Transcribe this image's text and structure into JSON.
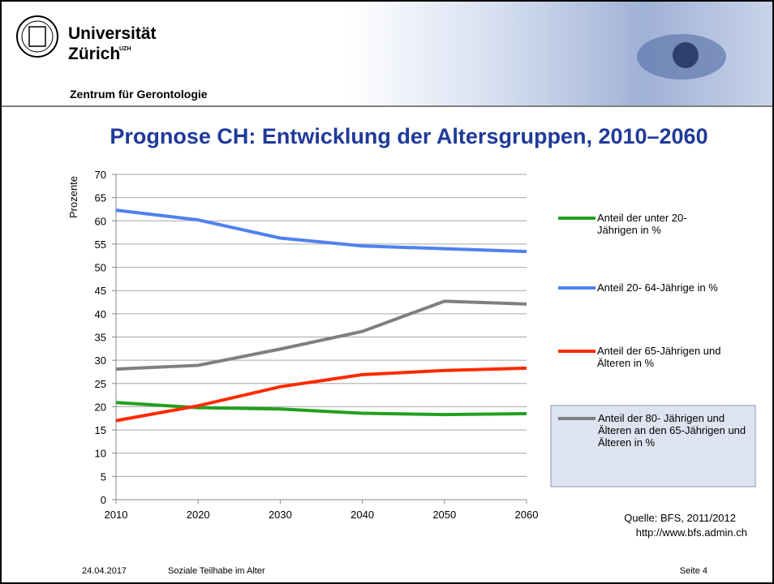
{
  "header": {
    "university": "Universität",
    "city": "Zürich",
    "city_mark": "UZH",
    "department": "Zentrum für Gerontologie"
  },
  "chart_data": {
    "type": "line",
    "title": "Prognose CH: Entwicklung der Altersgruppen, 2010–2060",
    "y_label": "Prozente",
    "x": [
      2010,
      2020,
      2030,
      2040,
      2050,
      2060
    ],
    "xlim": [
      2010,
      2060
    ],
    "xticks": [
      2010,
      2020,
      2030,
      2040,
      2050,
      2060
    ],
    "ylim": [
      0,
      70
    ],
    "yticks": [
      0,
      5,
      10,
      15,
      20,
      25,
      30,
      35,
      40,
      45,
      50,
      55,
      60,
      65,
      70
    ],
    "grid": true,
    "legend": "right",
    "series": [
      {
        "name": "Anteil der unter 20-Jährigen in %",
        "color": "#22a020",
        "values": [
          20.9,
          19.8,
          19.5,
          18.6,
          18.3,
          18.5
        ]
      },
      {
        "name": "Anteil 20- 64-Jährige in %",
        "color": "#4f81f0",
        "values": [
          62.3,
          60.2,
          56.3,
          54.6,
          54.0,
          53.4
        ]
      },
      {
        "name": "Anteil der 65-Jährigen und Älteren in %",
        "color": "#ff2a00",
        "values": [
          17.0,
          20.2,
          24.3,
          26.9,
          27.8,
          28.3
        ]
      },
      {
        "name": "Anteil der 80- Jährigen und Älteren an den 65-Jährigen und Älteren in %",
        "color": "#7f7f7f",
        "values": [
          28.1,
          28.9,
          32.4,
          36.2,
          42.7,
          42.1
        ]
      }
    ],
    "source": "Quelle: BFS, 2011/2012",
    "source_url": "http://www.bfs.admin.ch"
  },
  "footer": {
    "date": "24.04.2017",
    "topic": "Soziale Teilhabe im Alter",
    "page": "Seite 4"
  }
}
